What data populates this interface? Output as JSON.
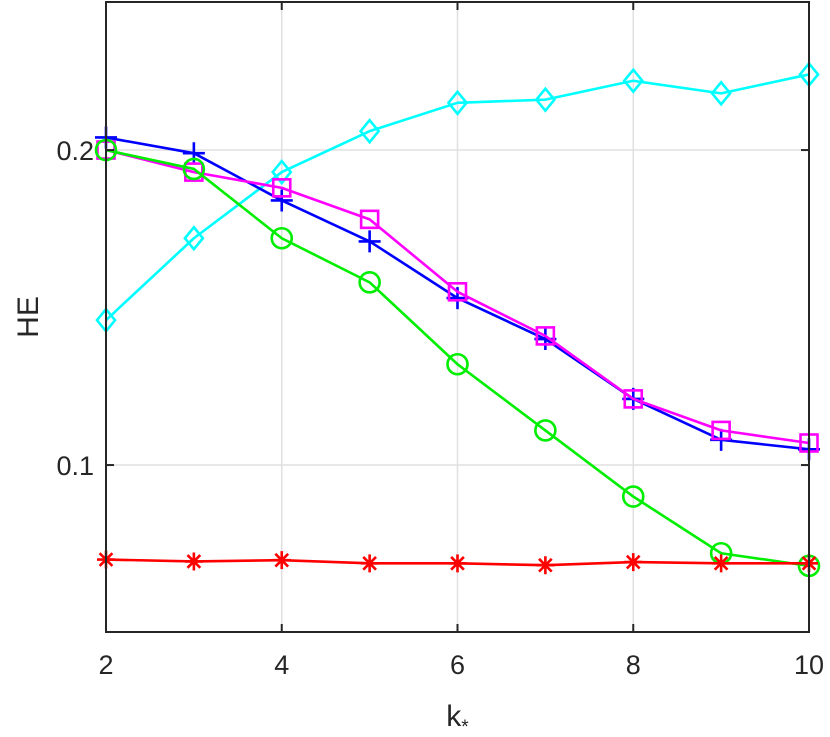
{
  "chart_data": {
    "type": "line",
    "title": "",
    "xlabel": "k",
    "xlabel_subscript": "*",
    "ylabel": "HE",
    "x": [
      2,
      3,
      4,
      5,
      6,
      7,
      8,
      9,
      10
    ],
    "xlim": [
      2,
      10
    ],
    "ylim": [
      0.047,
      0.247
    ],
    "xticks": [
      2,
      4,
      6,
      8,
      10
    ],
    "xtick_labels": [
      "2",
      "4",
      "6",
      "8",
      "10"
    ],
    "yticks": [
      0.1,
      0.2
    ],
    "ytick_labels": [
      "0.1",
      "0.2"
    ],
    "grid": true,
    "series": [
      {
        "color": "#00ffff",
        "marker": "diamond",
        "values": [
          0.146,
          0.172,
          0.193,
          0.206,
          0.215,
          0.216,
          0.222,
          0.218,
          0.224
        ]
      },
      {
        "color": "#0000ff",
        "marker": "plus",
        "values": [
          0.204,
          0.199,
          0.184,
          0.171,
          0.153,
          0.14,
          0.121,
          0.108,
          0.105
        ]
      },
      {
        "color": "#ff00ff",
        "marker": "square",
        "values": [
          0.2,
          0.193,
          0.188,
          0.178,
          0.155,
          0.141,
          0.121,
          0.111,
          0.107
        ]
      },
      {
        "color": "#00ee00",
        "marker": "circle",
        "values": [
          0.2,
          0.194,
          0.172,
          0.158,
          0.132,
          0.111,
          0.09,
          0.072,
          0.068
        ]
      },
      {
        "color": "#ff0000",
        "marker": "asterisk",
        "values": [
          0.07,
          0.0694,
          0.0698,
          0.0688,
          0.0688,
          0.0682,
          0.0692,
          0.0688,
          0.0688
        ]
      }
    ]
  }
}
